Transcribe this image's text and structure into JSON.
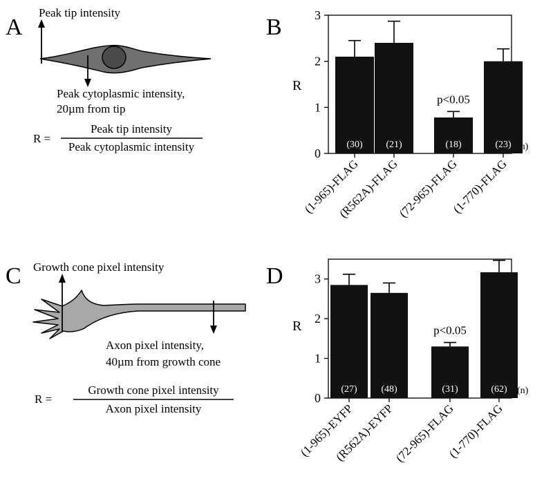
{
  "panels": {
    "a": {
      "letter": "A",
      "peak_tip_label": "Peak tip intensity",
      "cyto_label_line1": "Peak cytoplasmic intensity,",
      "cyto_label_line2": "20µm from tip",
      "r_eq": "R =",
      "numerator": "Peak tip intensity",
      "denominator": "Peak cytoplasmic intensity"
    },
    "c": {
      "letter": "C",
      "gc_label": "Growth cone pixel intensity",
      "axon_label_line1": "Axon pixel intensity,",
      "axon_label_line2": "40µm from growth cone",
      "r_eq": "R =",
      "numerator": "Growth cone pixel intensity",
      "denominator": "Axon pixel intensity"
    }
  },
  "colors": {
    "bar": "#111111",
    "cell_body": "#707070",
    "nucleus": "#4a4a4a",
    "growth_cone": "#a8a8a8"
  },
  "chart_data": [
    {
      "id": "B",
      "type": "bar",
      "panel_letter": "B",
      "ylabel": "R",
      "ylim": [
        0,
        3
      ],
      "yticks": [
        0,
        1,
        2,
        3
      ],
      "categories": [
        "(1-965)-FLAG",
        "(R562A)-FLAG",
        "(72-965)-FLAG",
        "(1-770)-FLAG"
      ],
      "values": [
        2.1,
        2.4,
        0.78,
        2.0
      ],
      "errors": [
        0.35,
        0.47,
        0.13,
        0.27
      ],
      "n": [
        "(30)",
        "(21)",
        "(18)",
        "(23)"
      ],
      "n_unit": "(n)",
      "annotation": {
        "text": "p<0.05",
        "bar_index": 2
      }
    },
    {
      "id": "D",
      "type": "bar",
      "panel_letter": "D",
      "ylabel": "R",
      "ylim": [
        0,
        3.5
      ],
      "yticks": [
        0,
        1,
        2,
        3
      ],
      "categories": [
        "(1-965)-EYFP",
        "(R562A)-EYFP",
        "(72-965)-FLAG",
        "(1-770)-FLAG"
      ],
      "values": [
        2.85,
        2.65,
        1.3,
        3.17
      ],
      "errors": [
        0.27,
        0.25,
        0.1,
        0.3
      ],
      "n": [
        "(27)",
        "(48)",
        "(31)",
        "(62)"
      ],
      "n_unit": "(n)",
      "annotation": {
        "text": "p<0.05",
        "bar_index": 2
      }
    }
  ]
}
